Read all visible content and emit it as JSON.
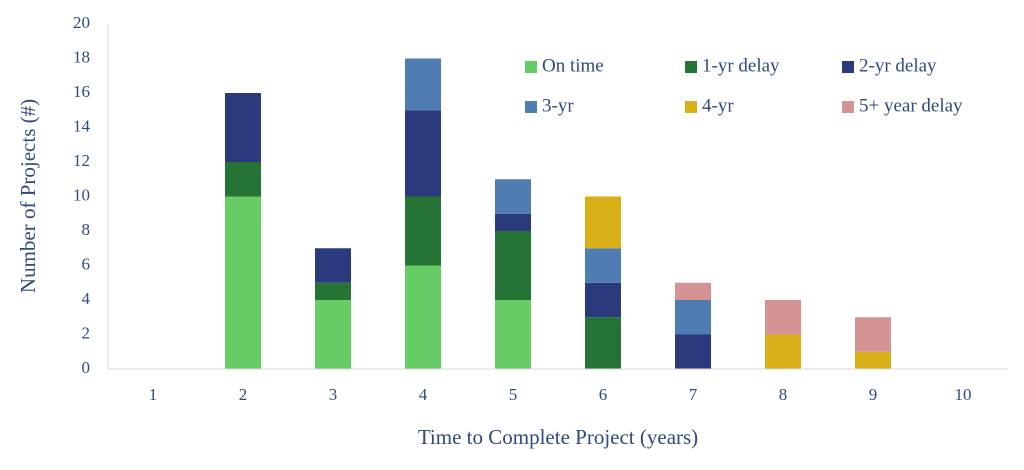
{
  "chart_data": {
    "type": "stacked-bar",
    "xlabel": "Time to Complete Project (years)",
    "ylabel": "Number of Projects (#)",
    "categories": [
      "1",
      "2",
      "3",
      "4",
      "5",
      "6",
      "7",
      "8",
      "9",
      "10"
    ],
    "series": [
      {
        "name": "On time",
        "color": "#66cc66",
        "values": [
          0,
          10,
          4,
          6,
          4,
          0,
          0,
          0,
          0,
          0
        ]
      },
      {
        "name": "1-yr delay",
        "color": "#267336",
        "values": [
          0,
          2,
          1,
          4,
          4,
          3,
          0,
          0,
          0,
          0
        ]
      },
      {
        "name": "2-yr delay",
        "color": "#2a3a7c",
        "values": [
          0,
          4,
          2,
          5,
          1,
          2,
          2,
          0,
          0,
          0
        ]
      },
      {
        "name": "3-yr",
        "color": "#4f7db3",
        "values": [
          0,
          0,
          0,
          3,
          2,
          2,
          2,
          0,
          0,
          0
        ]
      },
      {
        "name": "4-yr",
        "color": "#d9b018",
        "values": [
          0,
          0,
          0,
          0,
          0,
          3,
          0,
          2,
          1,
          0
        ]
      },
      {
        "name": "5+ year delay",
        "color": "#d49494",
        "values": [
          0,
          0,
          0,
          0,
          0,
          0,
          1,
          2,
          2,
          0
        ]
      }
    ],
    "ylim": [
      0,
      20
    ],
    "yticks": [
      0,
      2,
      4,
      6,
      8,
      10,
      12,
      14,
      16,
      18,
      20
    ],
    "grid": false,
    "legend": "top-right"
  }
}
